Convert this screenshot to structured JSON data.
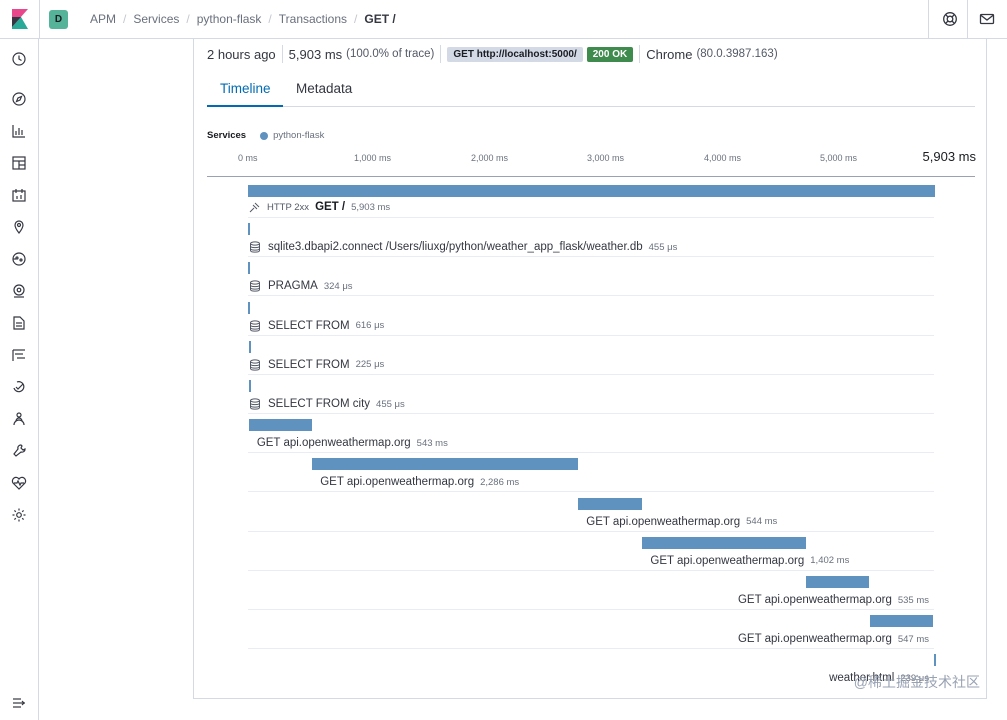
{
  "header": {
    "space_initial": "D",
    "breadcrumbs": [
      "APM",
      "Services",
      "python-flask",
      "Transactions",
      "GET /"
    ],
    "icons": [
      "help-icon",
      "mail-icon"
    ]
  },
  "sidebar": {
    "items": [
      {
        "name": "recent-icon"
      },
      {
        "name": "discover-icon"
      },
      {
        "name": "visualize-icon"
      },
      {
        "name": "dashboard-icon"
      },
      {
        "name": "canvas-icon"
      },
      {
        "name": "maps-icon"
      },
      {
        "name": "ml-icon"
      },
      {
        "name": "infrastructure-icon"
      },
      {
        "name": "logs-icon"
      },
      {
        "name": "apm-icon"
      },
      {
        "name": "uptime-icon"
      },
      {
        "name": "siem-icon"
      },
      {
        "name": "devtools-icon"
      },
      {
        "name": "monitoring-icon"
      },
      {
        "name": "management-icon"
      }
    ],
    "collapse_icon": "menu-collapse-icon"
  },
  "summary": {
    "age": "2 hours ago",
    "duration": "5,903 ms",
    "percent": "(100.0% of trace)",
    "request": "GET http://localhost:5000/",
    "status": "200 OK",
    "browser": "Chrome",
    "browser_version": "(80.0.3987.163)"
  },
  "tabs": [
    {
      "label": "Timeline",
      "active": true
    },
    {
      "label": "Metadata",
      "active": false
    }
  ],
  "legend": {
    "label": "Services",
    "service": "python-flask",
    "color": "#6092c0"
  },
  "timeline": {
    "ticks": [
      "0 ms",
      "1,000 ms",
      "2,000 ms",
      "3,000 ms",
      "4,000 ms",
      "5,000 ms"
    ],
    "total": "5,903 ms",
    "bar_color": "#6092c0",
    "items": [
      {
        "kind": "transaction",
        "tag": "HTTP 2xx",
        "name": "GET /",
        "duration": "5,903 ms",
        "start_ms": 0,
        "duration_ms": 5903
      },
      {
        "kind": "db",
        "name": "sqlite3.dbapi2.connect /Users/liuxg/python/weather_app_flask/weather.db",
        "duration": "455 μs",
        "start_ms": 2,
        "duration_ms": 0.455
      },
      {
        "kind": "db",
        "name": "PRAGMA",
        "duration": "324 μs",
        "start_ms": 3,
        "duration_ms": 0.324
      },
      {
        "kind": "db",
        "name": "SELECT FROM",
        "duration": "616 μs",
        "start_ms": 4,
        "duration_ms": 0.616
      },
      {
        "kind": "db",
        "name": "SELECT FROM",
        "duration": "225 μs",
        "start_ms": 5,
        "duration_ms": 0.225
      },
      {
        "kind": "db",
        "name": "SELECT FROM city",
        "duration": "455 μs",
        "start_ms": 6,
        "duration_ms": 0.455
      },
      {
        "kind": "external",
        "name": "GET api.openweathermap.org",
        "duration": "543 ms",
        "start_ms": 7,
        "duration_ms": 543
      },
      {
        "kind": "external",
        "name": "GET api.openweathermap.org",
        "duration": "2,286 ms",
        "start_ms": 552,
        "duration_ms": 2286
      },
      {
        "kind": "external",
        "name": "GET api.openweathermap.org",
        "duration": "544 ms",
        "start_ms": 2838,
        "duration_ms": 544
      },
      {
        "kind": "external",
        "name": "GET api.openweathermap.org",
        "duration": "1,402 ms",
        "start_ms": 3389,
        "duration_ms": 1402
      },
      {
        "kind": "external",
        "name": "GET api.openweathermap.org",
        "duration": "535 ms",
        "start_ms": 4797,
        "duration_ms": 535
      },
      {
        "kind": "external",
        "name": "GET api.openweathermap.org",
        "duration": "547 ms",
        "start_ms": 5342,
        "duration_ms": 547
      },
      {
        "kind": "template",
        "name": "weather.html",
        "duration": "239 μs",
        "start_ms": 5895,
        "duration_ms": 0.239
      }
    ]
  },
  "watermark": "@稀土掘金技术社区"
}
